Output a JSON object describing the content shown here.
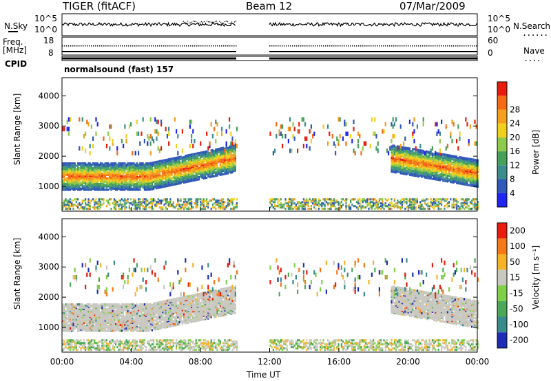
{
  "header": {
    "title": "TIGER (fitACF)",
    "beam": "Beam 12",
    "date": "07/Mar/2009"
  },
  "status_panels": {
    "nsky_label": "N.Sky",
    "nsearch_label": "N.Search",
    "nsky_scale": [
      "10^5",
      "10^0"
    ],
    "nsearch_scale": [
      "10^5",
      "10^0"
    ],
    "freq_label": "Freq.",
    "freq_unit": "[MHz]",
    "freq_scale": [
      "18",
      "8"
    ],
    "nave_label": "Nave",
    "nave_scale": [
      "60",
      "0"
    ],
    "cpid_label": "CPID",
    "cpid_value": "normalsound (fast) 157"
  },
  "chart_data": [
    {
      "type": "heatmap",
      "name": "power",
      "ylabel": "Slant Range [km]",
      "xlabel": "Time UT",
      "x_ticks": [
        "00:00",
        "04:00",
        "08:00",
        "12:00",
        "16:00",
        "20:00",
        "00:00"
      ],
      "y_ticks": [
        1000,
        2000,
        3000,
        4000
      ],
      "colorbar_label": "Power [dB]",
      "colorbar_ticks": [
        4,
        8,
        12,
        16,
        20,
        24,
        28
      ],
      "colors": [
        "#1f24ee",
        "#2f58b8",
        "#3c8c8c",
        "#48a05a",
        "#8dc94a",
        "#f0d01c",
        "#f5a01c",
        "#f56a14",
        "#e81c0c"
      ],
      "data_gap_hours": [
        10,
        12
      ]
    },
    {
      "type": "heatmap",
      "name": "velocity",
      "ylabel": "Slant Range [km]",
      "xlabel": "Time UT",
      "x_ticks": [
        "00:00",
        "04:00",
        "08:00",
        "12:00",
        "16:00",
        "20:00",
        "00:00"
      ],
      "y_ticks": [
        1000,
        2000,
        3000,
        4000
      ],
      "colorbar_label": "Velocity [m s⁻¹]",
      "colorbar_ticks": [
        200,
        100,
        50,
        15,
        -15,
        -50,
        -100,
        -200
      ],
      "colors": [
        "#1c2cb8",
        "#3a8c8c",
        "#4ca858",
        "#7fcf48",
        "#c8c8c0",
        "#f5b428",
        "#f57818",
        "#e81c0c"
      ],
      "data_gap_hours": [
        10,
        12
      ]
    }
  ]
}
